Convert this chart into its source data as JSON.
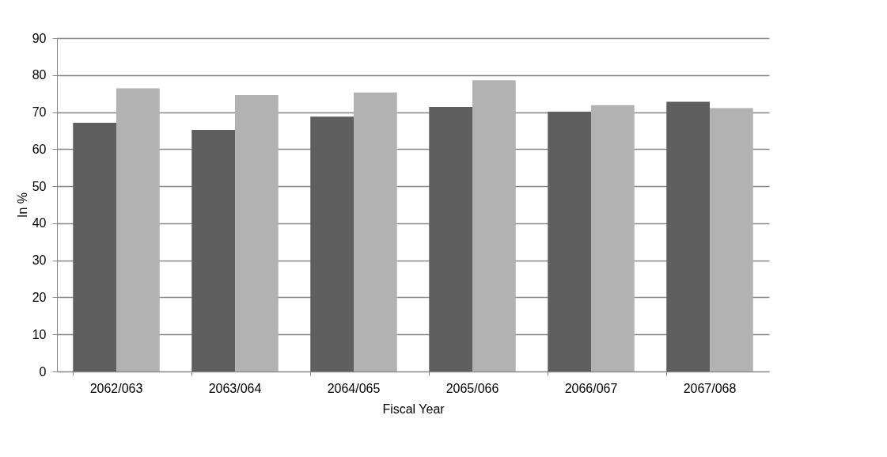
{
  "chart_data": {
    "type": "bar",
    "xlabel": "Fiscal Year",
    "ylabel": "In %",
    "categories": [
      "2062/063",
      "2063/064",
      "2064/065",
      "2065/066",
      "2066/067",
      "2067/068"
    ],
    "series": [
      {
        "color": "#5f5f5f",
        "values": [
          67.1,
          65.2,
          68.8,
          71.4,
          70.1,
          72.8
        ]
      },
      {
        "color": "#b2b2b2",
        "values": [
          76.4,
          74.6,
          75.3,
          78.6,
          71.9,
          71.1
        ]
      }
    ],
    "ylim": [
      0,
      90
    ],
    "yticks": [
      0,
      10,
      20,
      30,
      40,
      50,
      60,
      70,
      80,
      90
    ],
    "grid": "y"
  }
}
